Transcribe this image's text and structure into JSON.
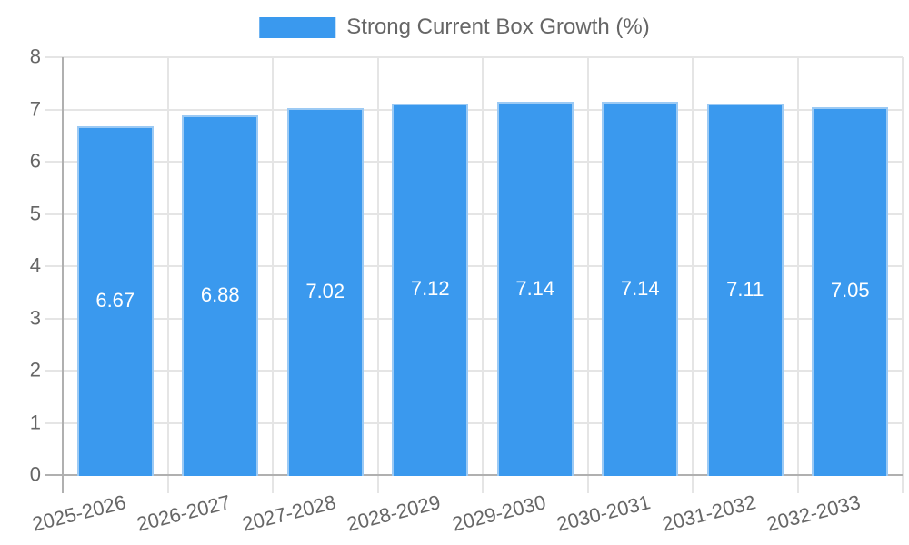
{
  "legend": {
    "label": "Strong Current Box Growth (%)"
  },
  "chart_data": {
    "type": "bar",
    "title": "",
    "legend_label": "Strong Current Box Growth (%)",
    "legend_position": "top",
    "categories": [
      "2025-2026",
      "2026-2027",
      "2027-2028",
      "2028-2029",
      "2029-2030",
      "2030-2031",
      "2031-2032",
      "2032-2033"
    ],
    "series": [
      {
        "name": "Strong Current Box Growth (%)",
        "values": [
          6.67,
          6.88,
          7.02,
          7.12,
          7.14,
          7.14,
          7.11,
          7.05
        ]
      }
    ],
    "value_labels": [
      "6.67",
      "6.88",
      "7.02",
      "7.12",
      "7.14",
      "7.14",
      "7.11",
      "7.05"
    ],
    "xlabel": "",
    "ylabel": "",
    "ylim": [
      0,
      8
    ],
    "yticks": [
      0,
      1,
      2,
      3,
      4,
      5,
      6,
      7,
      8
    ],
    "grid": true
  },
  "colors": {
    "bar_fill": "#3a99ee",
    "bar_border": "#9ccaf4",
    "grid": "#e5e5e5",
    "axis": "#b0b0b0",
    "tick_text": "#666666",
    "bar_label_text": "#ffffff",
    "background": "#ffffff"
  }
}
